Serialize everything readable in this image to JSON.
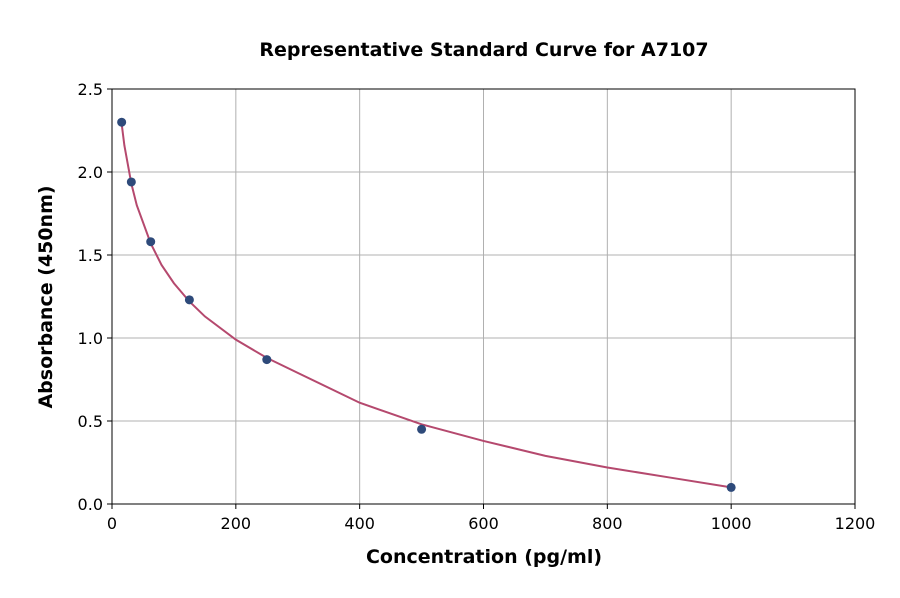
{
  "chart_data": {
    "type": "scatter",
    "title": "Representative Standard Curve for A7107",
    "x_label": "Concentration (pg/ml)",
    "y_label": "Absorbance (450nm)",
    "xlim": [
      0,
      1200
    ],
    "xticks": [
      0,
      200,
      400,
      600,
      800,
      1000,
      1200
    ],
    "ylim": [
      0,
      2.5
    ],
    "yticks": [
      {
        "value": 0,
        "label": "0.0"
      },
      0.5,
      {
        "value": 1,
        "label": "1.0"
      },
      1.5,
      {
        "value": 2,
        "label": "2.0"
      },
      2.5
    ],
    "grid": true,
    "series": [
      {
        "type": "line",
        "color": "#b5496e",
        "x": [
          15.6,
          20,
          31.25,
          40,
          62.5,
          80,
          100,
          125,
          150,
          200,
          250,
          300,
          400,
          500,
          600,
          700,
          800,
          900,
          1000
        ],
        "values": [
          2.29,
          2.16,
          1.93,
          1.8,
          1.57,
          1.44,
          1.33,
          1.22,
          1.13,
          0.99,
          0.88,
          0.79,
          0.61,
          0.48,
          0.38,
          0.29,
          0.22,
          0.16,
          0.1
        ]
      },
      {
        "type": "scatter",
        "color": "#2e4a7a",
        "x": [
          15.6,
          31.25,
          62.5,
          125,
          250,
          500,
          1000
        ],
        "values": [
          2.3,
          1.94,
          1.58,
          1.23,
          0.87,
          0.45,
          0.1
        ]
      }
    ]
  }
}
